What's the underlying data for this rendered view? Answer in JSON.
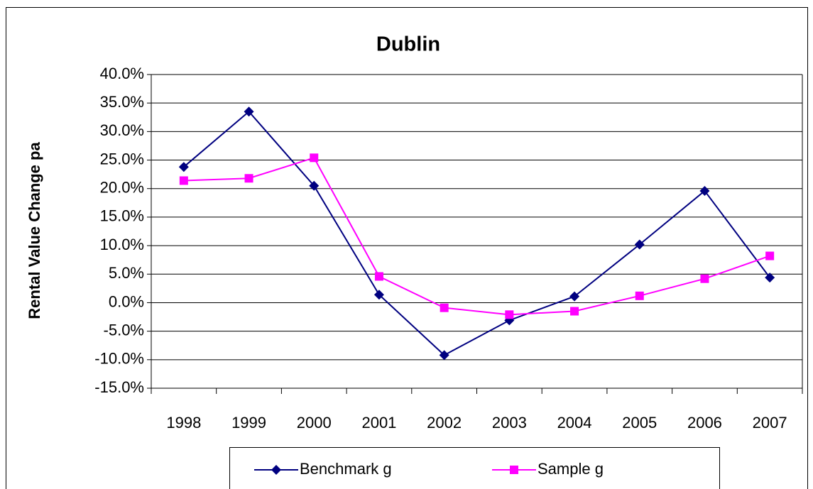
{
  "chart_data": {
    "type": "line",
    "title": "Dublin",
    "y_label": "Rental Value Change pa",
    "categories": [
      "1998",
      "1999",
      "2000",
      "2001",
      "2002",
      "2003",
      "2004",
      "2005",
      "2006",
      "2007"
    ],
    "series": [
      {
        "name": "Benchmark g",
        "color": "#000080",
        "marker": "diamond",
        "values": [
          23.8,
          33.5,
          20.5,
          1.4,
          -9.2,
          -3.1,
          1.1,
          10.2,
          19.6,
          4.4
        ]
      },
      {
        "name": "Sample g",
        "color": "#ff00ff",
        "marker": "square",
        "values": [
          21.4,
          21.8,
          25.4,
          4.6,
          -0.9,
          -2.1,
          -1.5,
          1.2,
          4.2,
          8.2
        ]
      }
    ],
    "ylim": [
      -15,
      40
    ],
    "yticks": [
      {
        "value": -15,
        "label": "-15.0%"
      },
      {
        "value": -10,
        "label": "-10.0%"
      },
      {
        "value": -5,
        "label": "-5.0%"
      },
      {
        "value": 0,
        "label": "0.0%"
      },
      {
        "value": 5,
        "label": "5.0%"
      },
      {
        "value": 10,
        "label": "10.0%"
      },
      {
        "value": 15,
        "label": "15.0%"
      },
      {
        "value": 20,
        "label": "20.0%"
      },
      {
        "value": 25,
        "label": "25.0%"
      },
      {
        "value": 30,
        "label": "30.0%"
      },
      {
        "value": 35,
        "label": "35.0%"
      },
      {
        "value": 40,
        "label": "40.0%"
      }
    ],
    "grid": true,
    "legend": "bottom"
  }
}
